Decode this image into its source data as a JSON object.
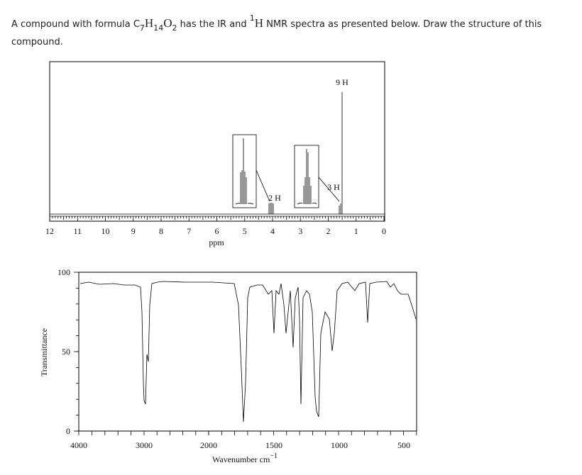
{
  "question": {
    "parts": [
      "A compound with formula C",
      "7",
      "H",
      "14",
      "O",
      "2",
      " has the IR and ",
      "1",
      "H",
      " NMR spectra as presented below. Draw the structure of this compound."
    ]
  },
  "nmr": {
    "peak_labels": [
      "9 H",
      "3 H",
      "2 H"
    ],
    "axis_labels": [
      "12",
      "11",
      "10",
      "9",
      "8",
      "7",
      "6",
      "5",
      "4",
      "3",
      "2",
      "1",
      "0"
    ],
    "axis_title": "ppm"
  },
  "ir": {
    "y_labels": [
      "100",
      "50",
      "0"
    ],
    "x_labels": [
      "4000",
      "3000",
      "2000",
      "1500",
      "1000",
      "500"
    ],
    "y_title": "Transmittance",
    "x_title": "Wavenumber cm",
    "x_title_sup": "−1"
  }
}
